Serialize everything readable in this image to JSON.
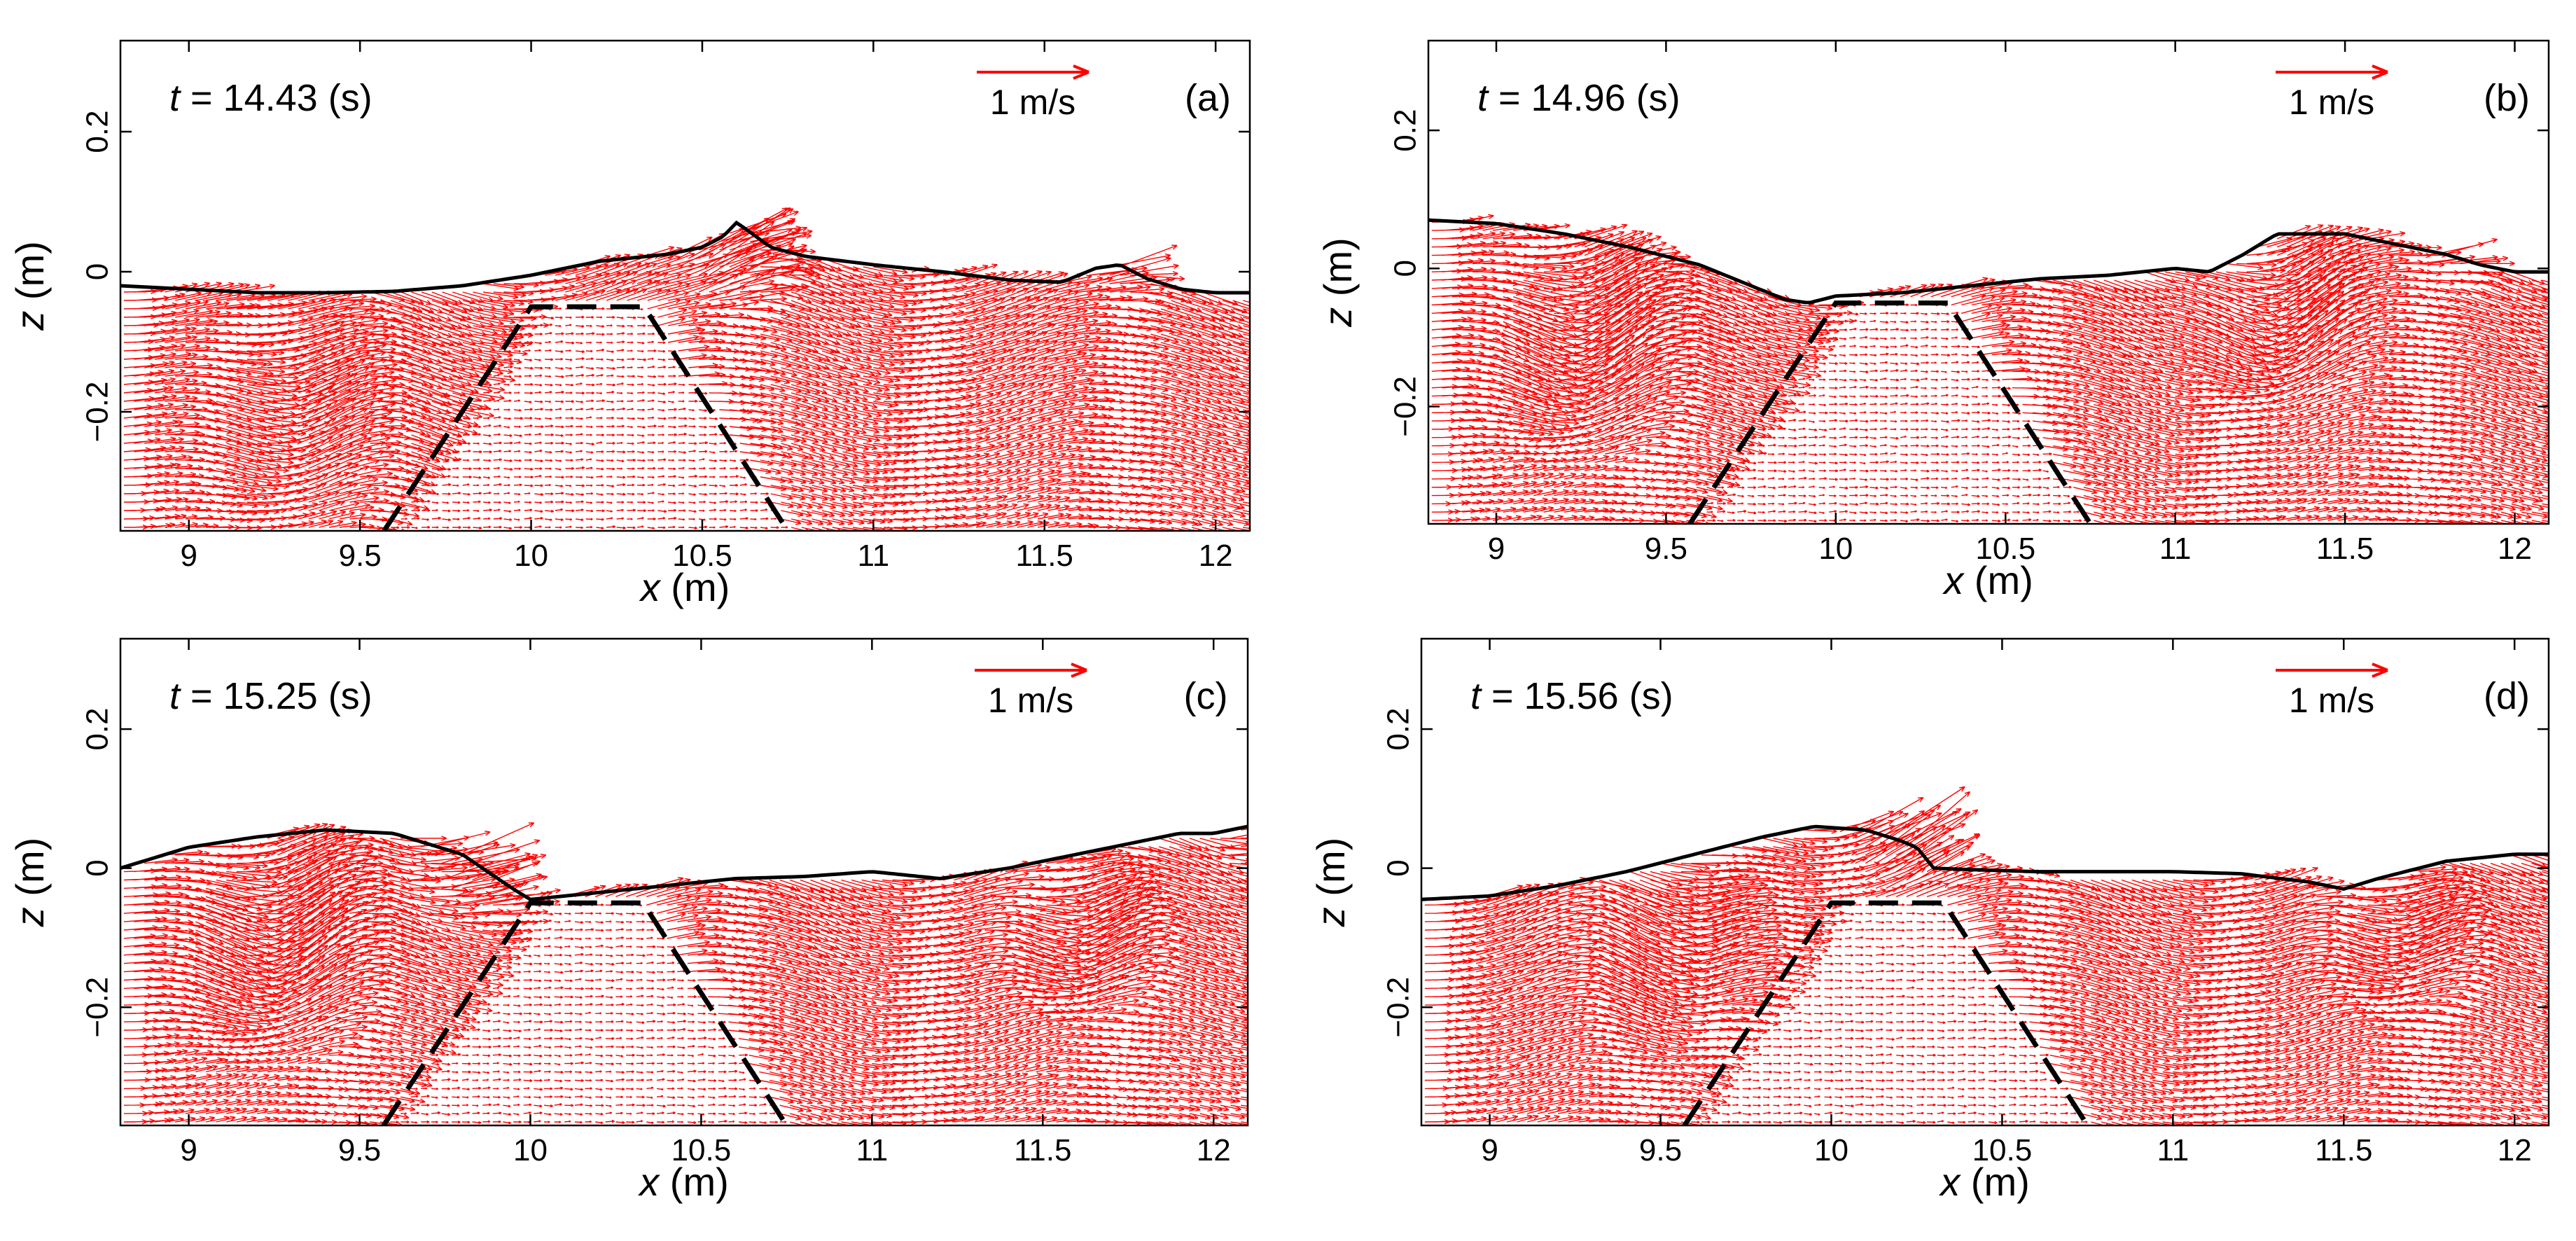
{
  "figure": {
    "axes": {
      "xlabel_var": "x",
      "xlabel_unit": " (m)",
      "ylabel_var": "z",
      "ylabel_unit": " (m)",
      "xlim": [
        8.8,
        12.1
      ],
      "ylim": [
        -0.37,
        0.33
      ],
      "xticks": [
        9,
        9.5,
        10,
        10.5,
        11,
        11.5,
        12
      ],
      "xtick_labels": [
        "9",
        "9.5",
        "10",
        "10.5",
        "11",
        "11.5",
        "12"
      ],
      "yticks": [
        0.2,
        0,
        -0.2
      ],
      "ytick_labels": [
        "0.2",
        "0",
        "−0.2"
      ]
    },
    "scale_arrow": {
      "label": "1 m/s",
      "speed": 1,
      "color": "#ff0000"
    },
    "structure": {
      "description_style": "dashed",
      "points": [
        [
          9.57,
          -0.37
        ],
        [
          10.0,
          -0.05
        ],
        [
          10.33,
          -0.05
        ],
        [
          10.75,
          -0.37
        ]
      ]
    }
  },
  "chart_data": [
    {
      "type": "vector-field",
      "panel": "(a)",
      "time_label": "t = 14.43 (s)",
      "time_var": "t",
      "time_rest": " = 14.43 (s)",
      "surface": {
        "x": [
          8.8,
          9.0,
          9.2,
          9.4,
          9.6,
          9.8,
          10.0,
          10.2,
          10.4,
          10.5,
          10.56,
          10.6,
          10.63,
          10.7,
          10.8,
          11.0,
          11.2,
          11.4,
          11.55,
          11.65,
          11.72,
          11.8,
          11.9,
          12.0,
          12.1
        ],
        "z": [
          -0.02,
          -0.025,
          -0.03,
          -0.03,
          -0.028,
          -0.02,
          -0.005,
          0.015,
          0.025,
          0.035,
          0.05,
          0.07,
          0.06,
          0.035,
          0.022,
          0.01,
          0.0,
          -0.012,
          -0.015,
          0.005,
          0.01,
          -0.01,
          -0.025,
          -0.03,
          -0.03
        ]
      },
      "flow_regions": [
        {
          "xc": 10.55,
          "zc": 0.02,
          "r": 0.2,
          "strength": 0.55,
          "type": "jet"
        },
        {
          "xc": 9.25,
          "zc": -0.2,
          "r": 0.5,
          "strength": 0.3,
          "type": "wave"
        },
        {
          "xc": 11.7,
          "zc": 0.0,
          "r": 0.12,
          "strength": 0.3,
          "type": "jet"
        }
      ]
    },
    {
      "type": "vector-field",
      "panel": "(b)",
      "time_label": "t = 14.96 (s)",
      "time_var": "t",
      "time_rest": " = 14.96 (s)",
      "surface": {
        "x": [
          8.8,
          9.0,
          9.2,
          9.4,
          9.6,
          9.75,
          9.85,
          9.92,
          10.0,
          10.2,
          10.4,
          10.6,
          10.8,
          11.0,
          11.1,
          11.2,
          11.3,
          11.5,
          11.7,
          11.8,
          11.9,
          12.0,
          12.1
        ],
        "z": [
          0.07,
          0.065,
          0.05,
          0.03,
          0.005,
          -0.025,
          -0.045,
          -0.05,
          -0.04,
          -0.035,
          -0.025,
          -0.015,
          -0.01,
          0.0,
          -0.005,
          0.02,
          0.05,
          0.05,
          0.03,
          0.02,
          0.005,
          -0.005,
          -0.005
        ]
      },
      "flow_regions": [
        {
          "xc": 9.2,
          "zc": -0.1,
          "r": 0.45,
          "strength": 0.45,
          "type": "wave"
        },
        {
          "xc": 11.25,
          "zc": -0.08,
          "r": 0.3,
          "strength": 0.4,
          "type": "wave"
        },
        {
          "xc": 11.8,
          "zc": 0.02,
          "r": 0.12,
          "strength": 0.3,
          "type": "jet"
        }
      ]
    },
    {
      "type": "vector-field",
      "panel": "(c)",
      "time_label": "t = 15.25 (s)",
      "time_var": "t",
      "time_rest": " = 15.25 (s)",
      "surface": {
        "x": [
          8.8,
          9.0,
          9.2,
          9.4,
          9.6,
          9.8,
          9.95,
          10.0,
          10.2,
          10.4,
          10.6,
          10.8,
          11.0,
          11.2,
          11.4,
          11.6,
          11.8,
          11.9,
          12.0,
          12.1
        ],
        "z": [
          0.0,
          0.03,
          0.045,
          0.055,
          0.05,
          0.02,
          -0.03,
          -0.045,
          -0.035,
          -0.025,
          -0.015,
          -0.012,
          -0.005,
          -0.015,
          0.0,
          0.02,
          0.04,
          0.05,
          0.05,
          0.06
        ]
      },
      "flow_regions": [
        {
          "xc": 9.8,
          "zc": 0.02,
          "r": 0.25,
          "strength": 0.45,
          "type": "jet"
        },
        {
          "xc": 9.2,
          "zc": -0.1,
          "r": 0.45,
          "strength": 0.45,
          "type": "wave"
        },
        {
          "xc": 11.55,
          "zc": -0.1,
          "r": 0.3,
          "strength": 0.45,
          "type": "wave"
        },
        {
          "xc": 12.05,
          "zc": 0.04,
          "r": 0.1,
          "strength": 0.3,
          "type": "jet"
        }
      ]
    },
    {
      "type": "vector-field",
      "panel": "(d)",
      "time_label": "t = 15.56 (s)",
      "time_var": "t",
      "time_rest": " = 15.56 (s)",
      "surface": {
        "x": [
          8.8,
          9.0,
          9.2,
          9.4,
          9.6,
          9.8,
          9.95,
          10.1,
          10.2,
          10.25,
          10.3,
          10.4,
          10.6,
          10.8,
          11.0,
          11.2,
          11.4,
          11.5,
          11.6,
          11.8,
          12.0,
          12.1
        ],
        "z": [
          -0.045,
          -0.04,
          -0.025,
          -0.005,
          0.02,
          0.045,
          0.06,
          0.055,
          0.04,
          0.03,
          0.0,
          -0.002,
          -0.005,
          -0.005,
          -0.005,
          -0.008,
          -0.02,
          -0.03,
          -0.015,
          0.01,
          0.02,
          0.02
        ]
      },
      "flow_regions": [
        {
          "xc": 10.2,
          "zc": 0.05,
          "r": 0.22,
          "strength": 0.55,
          "type": "jet"
        },
        {
          "xc": 9.5,
          "zc": -0.1,
          "r": 0.45,
          "strength": 0.35,
          "type": "wave"
        },
        {
          "xc": 11.6,
          "zc": -0.1,
          "r": 0.3,
          "strength": 0.4,
          "type": "wave"
        }
      ]
    }
  ]
}
